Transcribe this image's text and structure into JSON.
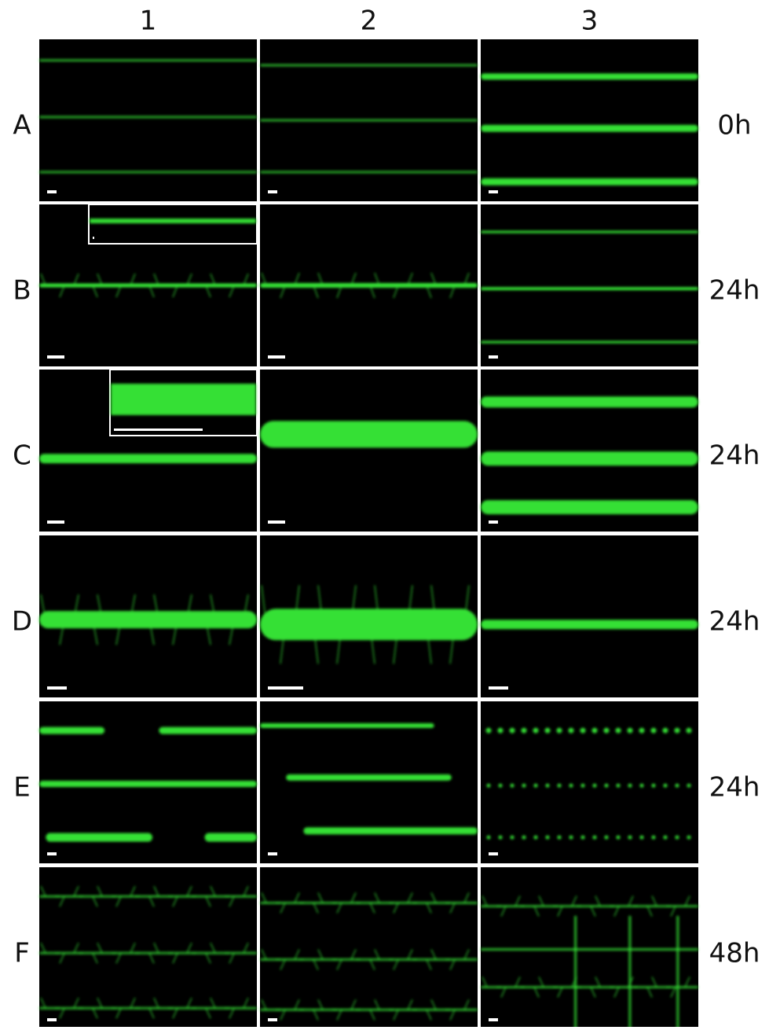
{
  "columns": [
    "1",
    "2",
    "3"
  ],
  "rows": [
    {
      "label": "A",
      "time": "0h"
    },
    {
      "label": "B",
      "time": "24h"
    },
    {
      "label": "C",
      "time": "24h"
    },
    {
      "label": "D",
      "time": "24h"
    },
    {
      "label": "E",
      "time": "24h"
    },
    {
      "label": "F",
      "time": "48h"
    }
  ]
}
